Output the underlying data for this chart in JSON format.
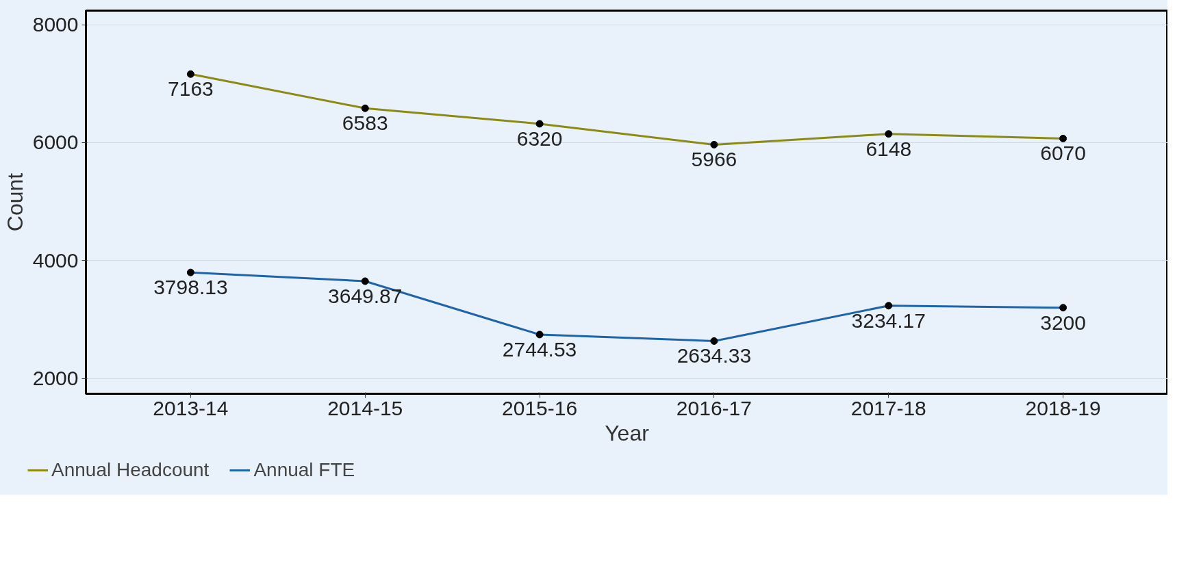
{
  "chart_data": {
    "type": "line",
    "xlabel": "Year",
    "ylabel": "Count",
    "categories": [
      "2013-14",
      "2014-15",
      "2015-16",
      "2016-17",
      "2017-18",
      "2018-19"
    ],
    "series": [
      {
        "name": "Annual Headcount",
        "color": "#8c8a12",
        "values": [
          7163,
          6583,
          6320,
          5966,
          6148,
          6070
        ]
      },
      {
        "name": "Annual FTE",
        "color": "#1f63a8",
        "values": [
          3798.13,
          3649.87,
          2744.53,
          2634.33,
          3234.17,
          3200
        ]
      }
    ],
    "ylim": [
      1740,
      8240
    ],
    "yticks": [
      2000,
      4000,
      6000,
      8000
    ],
    "grid": "y",
    "legend": "bottom left",
    "marker": "circle",
    "line_style": "solid",
    "data_labels": true
  }
}
